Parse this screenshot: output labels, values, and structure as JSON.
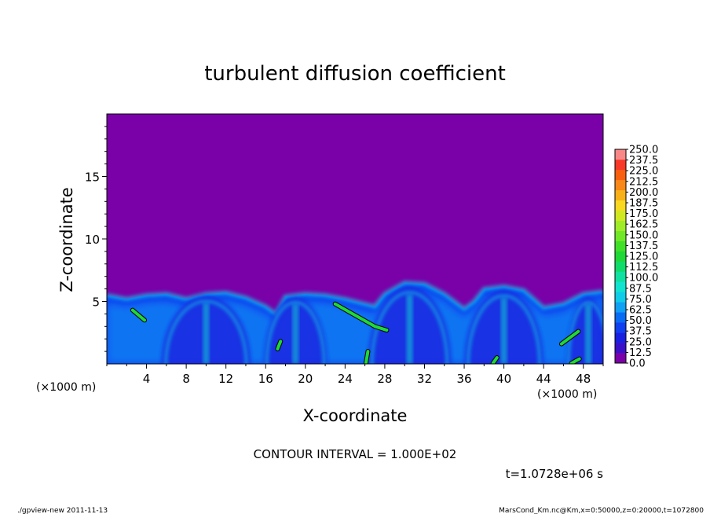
{
  "chart_data": {
    "type": "heatmap",
    "title": "turbulent diffusion coefficient",
    "xlabel": "X-coordinate",
    "ylabel": "Z-coordinate",
    "x_unit": "(×1000 m)",
    "y_unit": "(×1000 m)",
    "xlim": [
      0,
      50
    ],
    "ylim": [
      0,
      20
    ],
    "x_ticks": [
      4,
      8,
      12,
      16,
      20,
      24,
      28,
      32,
      36,
      40,
      44,
      48
    ],
    "y_ticks": [
      5,
      10,
      15
    ],
    "contour_interval": "CONTOUR INTERVAL = 1.000E+02",
    "time_label": "t=1.0728e+06 s",
    "background_value": 0.0,
    "colorbar": {
      "levels": [
        0.0,
        12.5,
        25.0,
        37.5,
        50.0,
        62.5,
        75.0,
        87.5,
        100.0,
        112.5,
        125.0,
        137.5,
        150.0,
        162.5,
        175.0,
        187.5,
        200.0,
        212.5,
        225.0,
        237.5,
        250.0
      ],
      "labels": [
        "0.0",
        "12.5",
        "25.0",
        "37.5",
        "50.0",
        "62.5",
        "75.0",
        "87.5",
        "100.0",
        "112.5",
        "125.0",
        "137.5",
        "150.0",
        "162.5",
        "175.0",
        "187.5",
        "200.0",
        "212.5",
        "225.0",
        "237.5",
        "250.0"
      ],
      "colors": [
        "#7a00a8",
        "#3a10c8",
        "#1a20e0",
        "#1040f0",
        "#0a6cf4",
        "#10a0f4",
        "#10cce8",
        "#10e4d0",
        "#10e0a0",
        "#10dc6a",
        "#20d838",
        "#40e028",
        "#70e828",
        "#a0ec28",
        "#d0e820",
        "#f8d820",
        "#f8b018",
        "#f88818",
        "#f86010",
        "#f83828",
        "#f88888"
      ]
    },
    "boundary_layer_top": [
      [
        0,
        5.5
      ],
      [
        2,
        5.2
      ],
      [
        4,
        5.5
      ],
      [
        6,
        5.6
      ],
      [
        8,
        5.2
      ],
      [
        10,
        5.6
      ],
      [
        12,
        5.7
      ],
      [
        14,
        5.3
      ],
      [
        16,
        4.6
      ],
      [
        17,
        4.0
      ],
      [
        18,
        5.4
      ],
      [
        20,
        5.6
      ],
      [
        22,
        5.5
      ],
      [
        24,
        5.2
      ],
      [
        26,
        4.8
      ],
      [
        27,
        4.6
      ],
      [
        28,
        5.6
      ],
      [
        30,
        6.5
      ],
      [
        32,
        6.4
      ],
      [
        34,
        5.6
      ],
      [
        36,
        4.4
      ],
      [
        37,
        5.0
      ],
      [
        38,
        6.0
      ],
      [
        40,
        6.2
      ],
      [
        42,
        5.9
      ],
      [
        44,
        4.5
      ],
      [
        46,
        4.8
      ],
      [
        48,
        5.6
      ],
      [
        50,
        5.8
      ]
    ],
    "thermal_domes": [
      {
        "x": 10.0,
        "x_half_width": 4.5,
        "top": 5.7
      },
      {
        "x": 19.0,
        "x_half_width": 3.2,
        "top": 5.6
      },
      {
        "x": 30.5,
        "x_half_width": 4.2,
        "top": 6.5
      },
      {
        "x": 40.0,
        "x_half_width": 4.0,
        "top": 6.2
      },
      {
        "x": 48.5,
        "x_half_width": 2.2,
        "top": 5.6
      }
    ],
    "high_value_contours": [
      {
        "x": [
          2.6,
          3.8
        ],
        "z": [
          4.3,
          3.5
        ],
        "value": 100
      },
      {
        "x": [
          23.0,
          25.0,
          27.0,
          28.2
        ],
        "z": [
          4.8,
          3.9,
          3.0,
          2.7
        ],
        "value": 100
      },
      {
        "x": [
          26.1,
          26.3
        ],
        "z": [
          0.05,
          1.0
        ],
        "value": 100
      },
      {
        "x": [
          38.9,
          39.3
        ],
        "z": [
          0.05,
          0.5
        ],
        "value": 100
      },
      {
        "x": [
          45.8,
          47.5
        ],
        "z": [
          1.6,
          2.6
        ],
        "value": 100
      },
      {
        "x": [
          46.8,
          47.6
        ],
        "z": [
          0.05,
          0.4
        ],
        "value": 100
      },
      {
        "x": [
          17.2,
          17.5
        ],
        "z": [
          1.2,
          1.8
        ],
        "value": 100
      }
    ]
  },
  "footer": {
    "left": "./gpview-new   2011-11-13",
    "right": "MarsCond_Km.nc@Km,x=0:50000,z=0:20000,t=1072800"
  }
}
